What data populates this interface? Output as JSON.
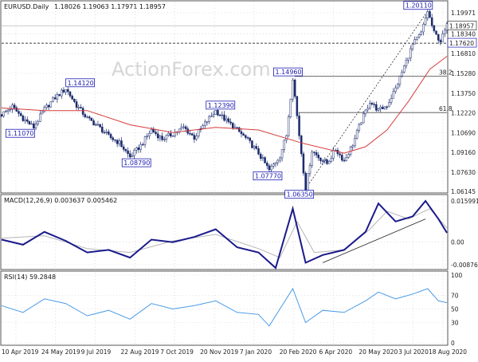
{
  "header": {
    "symbol": "EURUSD.Daily",
    "ohlc": "1.18026 1.19063 1.17971 1.18957",
    "macd": "MACD(12,26,9) 0.003637 0.005462",
    "rsi": "RSI(14) 59.2848"
  },
  "watermark": "ActionForex.com",
  "chart_data": [
    {
      "type": "candlestick",
      "ylim": [
        1.06145,
        1.19971
      ],
      "y_ticks": [
        "1.19971",
        "1.18340",
        "1.16810",
        "1.15280",
        "1.13750",
        "1.12220",
        "1.10690",
        "1.09160",
        "1.07630",
        "1.06145"
      ],
      "current_price": "1.18957",
      "horizontal_line": "1.17620",
      "x_tick_labels": [
        "10 Apr 2019",
        "24 May 2019",
        "9 Jul 2019",
        "22 Aug 2019",
        "7 Oct 2019",
        "20 Nov 2019",
        "7 Jan 2020",
        "20 Feb 2020",
        "6 Apr 2020",
        "20 May 2020",
        "3 Jul 2020",
        "18 Aug 2020"
      ],
      "swing_labels": [
        "1.14120",
        "1.11070",
        "1.08790",
        "1.12390",
        "1.07770",
        "1.14960",
        "1.06350",
        "1.20110"
      ],
      "fib_labels": [
        "38.2",
        "61.8"
      ],
      "close_path": [
        {
          "x": 0,
          "y": 1.121
        },
        {
          "x": 5,
          "y": 1.127
        },
        {
          "x": 10,
          "y": 1.118
        },
        {
          "x": 15,
          "y": 1.111
        },
        {
          "x": 20,
          "y": 1.125
        },
        {
          "x": 25,
          "y": 1.134
        },
        {
          "x": 30,
          "y": 1.141
        },
        {
          "x": 35,
          "y": 1.128
        },
        {
          "x": 40,
          "y": 1.118
        },
        {
          "x": 45,
          "y": 1.112
        },
        {
          "x": 50,
          "y": 1.104
        },
        {
          "x": 55,
          "y": 1.099
        },
        {
          "x": 60,
          "y": 1.088
        },
        {
          "x": 65,
          "y": 1.097
        },
        {
          "x": 70,
          "y": 1.109
        },
        {
          "x": 75,
          "y": 1.102
        },
        {
          "x": 80,
          "y": 1.106
        },
        {
          "x": 85,
          "y": 1.111
        },
        {
          "x": 90,
          "y": 1.103
        },
        {
          "x": 95,
          "y": 1.114
        },
        {
          "x": 100,
          "y": 1.1239
        },
        {
          "x": 105,
          "y": 1.116
        },
        {
          "x": 110,
          "y": 1.109
        },
        {
          "x": 115,
          "y": 1.101
        },
        {
          "x": 120,
          "y": 1.091
        },
        {
          "x": 125,
          "y": 1.0777
        },
        {
          "x": 130,
          "y": 1.089
        },
        {
          "x": 133,
          "y": 1.105
        },
        {
          "x": 136,
          "y": 1.1496
        },
        {
          "x": 139,
          "y": 1.105
        },
        {
          "x": 142,
          "y": 1.0635
        },
        {
          "x": 145,
          "y": 1.093
        },
        {
          "x": 148,
          "y": 1.088
        },
        {
          "x": 152,
          "y": 1.083
        },
        {
          "x": 156,
          "y": 1.094
        },
        {
          "x": 160,
          "y": 1.085
        },
        {
          "x": 164,
          "y": 1.098
        },
        {
          "x": 168,
          "y": 1.116
        },
        {
          "x": 172,
          "y": 1.131
        },
        {
          "x": 176,
          "y": 1.124
        },
        {
          "x": 180,
          "y": 1.128
        },
        {
          "x": 184,
          "y": 1.141
        },
        {
          "x": 188,
          "y": 1.158
        },
        {
          "x": 192,
          "y": 1.175
        },
        {
          "x": 196,
          "y": 1.184
        },
        {
          "x": 199,
          "y": 1.2011
        },
        {
          "x": 202,
          "y": 1.184
        },
        {
          "x": 205,
          "y": 1.178
        },
        {
          "x": 208,
          "y": 1.18957
        }
      ],
      "sma_path": [
        {
          "x": 0,
          "y": 1.126
        },
        {
          "x": 20,
          "y": 1.124
        },
        {
          "x": 40,
          "y": 1.124
        },
        {
          "x": 60,
          "y": 1.113
        },
        {
          "x": 80,
          "y": 1.107
        },
        {
          "x": 100,
          "y": 1.111
        },
        {
          "x": 120,
          "y": 1.109
        },
        {
          "x": 140,
          "y": 1.099
        },
        {
          "x": 160,
          "y": 1.091
        },
        {
          "x": 170,
          "y": 1.096
        },
        {
          "x": 180,
          "y": 1.109
        },
        {
          "x": 190,
          "y": 1.131
        },
        {
          "x": 200,
          "y": 1.156
        },
        {
          "x": 208,
          "y": 1.166
        }
      ]
    },
    {
      "type": "line",
      "ylim": [
        -0.00876,
        0.01599
      ],
      "y_ticks": [
        "0.015991",
        "0.00",
        "-0.00876"
      ],
      "series": [
        {
          "values": [
            {
              "x": 0,
              "y": 0.001
            },
            {
              "x": 10,
              "y": -0.001
            },
            {
              "x": 20,
              "y": 0.004
            },
            {
              "x": 30,
              "y": 0.0005
            },
            {
              "x": 40,
              "y": -0.004
            },
            {
              "x": 50,
              "y": -0.003
            },
            {
              "x": 60,
              "y": -0.006
            },
            {
              "x": 70,
              "y": 0.001
            },
            {
              "x": 80,
              "y": 0.0
            },
            {
              "x": 90,
              "y": 0.002
            },
            {
              "x": 100,
              "y": 0.005
            },
            {
              "x": 110,
              "y": -0.002
            },
            {
              "x": 120,
              "y": -0.004
            },
            {
              "x": 128,
              "y": -0.01
            },
            {
              "x": 136,
              "y": 0.013
            },
            {
              "x": 142,
              "y": -0.008
            },
            {
              "x": 150,
              "y": -0.005
            },
            {
              "x": 160,
              "y": -0.003
            },
            {
              "x": 170,
              "y": 0.004
            },
            {
              "x": 176,
              "y": 0.015
            },
            {
              "x": 184,
              "y": 0.008
            },
            {
              "x": 192,
              "y": 0.01
            },
            {
              "x": 198,
              "y": 0.016
            },
            {
              "x": 204,
              "y": 0.009
            },
            {
              "x": 208,
              "y": 0.0036
            }
          ]
        },
        {
          "values": [
            {
              "x": 0,
              "y": 0.0015
            },
            {
              "x": 20,
              "y": 0.0025
            },
            {
              "x": 40,
              "y": -0.0025
            },
            {
              "x": 60,
              "y": -0.004
            },
            {
              "x": 80,
              "y": 0.0005
            },
            {
              "x": 100,
              "y": 0.003
            },
            {
              "x": 120,
              "y": -0.0025
            },
            {
              "x": 130,
              "y": -0.006
            },
            {
              "x": 138,
              "y": 0.008
            },
            {
              "x": 146,
              "y": -0.004
            },
            {
              "x": 160,
              "y": -0.003
            },
            {
              "x": 172,
              "y": 0.005
            },
            {
              "x": 180,
              "y": 0.012
            },
            {
              "x": 190,
              "y": 0.009
            },
            {
              "x": 200,
              "y": 0.013
            },
            {
              "x": 208,
              "y": 0.0055
            }
          ]
        }
      ]
    },
    {
      "type": "line",
      "ylim": [
        0,
        100
      ],
      "y_ticks": [
        "100",
        "70",
        "50",
        "30",
        "0"
      ],
      "series": [
        {
          "values": [
            {
              "x": 0,
              "y": 55
            },
            {
              "x": 10,
              "y": 45
            },
            {
              "x": 20,
              "y": 65
            },
            {
              "x": 30,
              "y": 58
            },
            {
              "x": 40,
              "y": 40
            },
            {
              "x": 50,
              "y": 48
            },
            {
              "x": 60,
              "y": 35
            },
            {
              "x": 70,
              "y": 58
            },
            {
              "x": 80,
              "y": 50
            },
            {
              "x": 90,
              "y": 55
            },
            {
              "x": 100,
              "y": 62
            },
            {
              "x": 110,
              "y": 45
            },
            {
              "x": 120,
              "y": 42
            },
            {
              "x": 125,
              "y": 25
            },
            {
              "x": 136,
              "y": 80
            },
            {
              "x": 142,
              "y": 30
            },
            {
              "x": 150,
              "y": 48
            },
            {
              "x": 160,
              "y": 45
            },
            {
              "x": 170,
              "y": 62
            },
            {
              "x": 176,
              "y": 75
            },
            {
              "x": 184,
              "y": 65
            },
            {
              "x": 192,
              "y": 72
            },
            {
              "x": 199,
              "y": 80
            },
            {
              "x": 204,
              "y": 62
            },
            {
              "x": 208,
              "y": 59.28
            }
          ]
        }
      ]
    }
  ],
  "colors": {
    "background": "#ffffff",
    "frame": "#555555",
    "grid": "#c8c8c8",
    "candle": "#1a2a6c",
    "sma": "#d63b3b",
    "macd": "#1a1a8c",
    "signal": "#b5b5b5",
    "rsi": "#4a9be8",
    "label_border": "#1b1bb0"
  }
}
